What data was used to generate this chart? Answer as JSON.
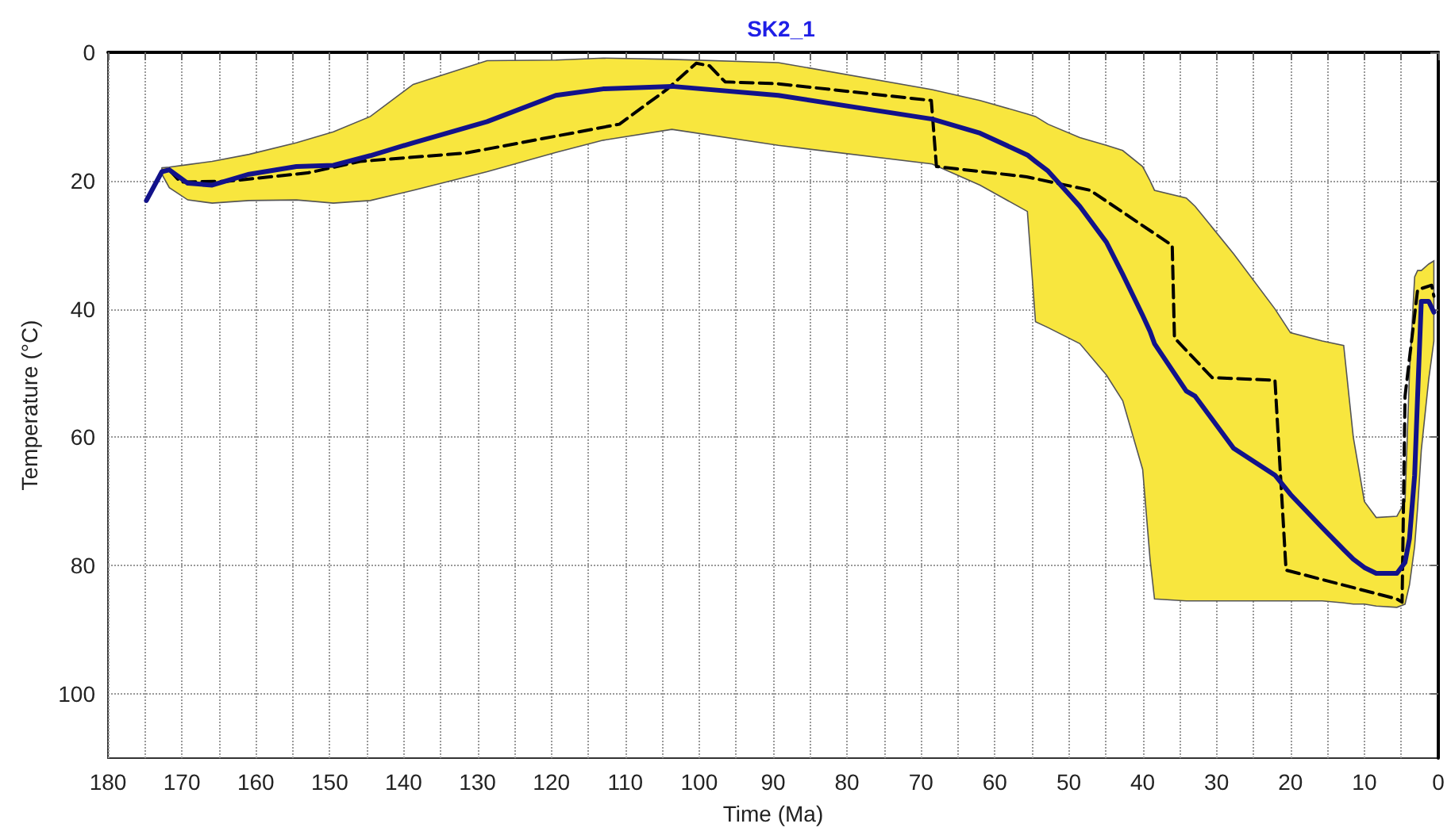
{
  "chart_data": {
    "type": "line",
    "title": "SK2_1",
    "xlabel": "Time (Ma)",
    "ylabel": "Temperature (°C)",
    "xlim": [
      180,
      0
    ],
    "ylim": [
      110,
      0
    ],
    "xticks": [
      180,
      {
        "value": 175,
        "label": null
      },
      170,
      {
        "value": 165,
        "label": null
      },
      160,
      {
        "value": 155,
        "label": null
      },
      150,
      {
        "value": 145,
        "label": null
      },
      140,
      {
        "value": 135,
        "label": null
      },
      130,
      {
        "value": 125,
        "label": null
      },
      120,
      {
        "value": 115,
        "label": null
      },
      110,
      {
        "value": 105,
        "label": null
      },
      100,
      {
        "value": 95,
        "label": null
      },
      90,
      {
        "value": 85,
        "label": null
      },
      80,
      {
        "value": 75,
        "label": null
      },
      70,
      {
        "value": 65,
        "label": null
      },
      60,
      {
        "value": 55,
        "label": null
      },
      50,
      {
        "value": 45,
        "label": null
      },
      40,
      {
        "value": 35,
        "label": null
      },
      30,
      {
        "value": 25,
        "label": null
      },
      20,
      {
        "value": 15,
        "label": null
      },
      10,
      {
        "value": 5,
        "label": null
      },
      0
    ],
    "yticks": [
      0,
      20,
      40,
      60,
      80,
      100
    ],
    "grid": true,
    "marker": "none",
    "series": [
      {
        "color": "#000000",
        "line_style": "dashed",
        "x": [
          171.7,
          170.2,
          163.8,
          153,
          145.9,
          131.6,
          110.8,
          104.4,
          100.4,
          98.6,
          96.5,
          89.3,
          68.6,
          67.9,
          55.7,
          47.1,
          36,
          35.7,
          30.6,
          22.1,
          20.6,
          5.6,
          4.9,
          4.5,
          2.8,
          0.9,
          0.6
        ],
        "values": [
          18.3,
          20.2,
          20.1,
          18.8,
          17,
          15.7,
          11.2,
          5.8,
          1.7,
          2.1,
          4.6,
          4.9,
          7.5,
          17.8,
          19.4,
          21.5,
          30.1,
          44.5,
          50.7,
          51.1,
          80.7,
          85.2,
          85.7,
          53.6,
          37,
          36.3,
          38
        ]
      },
      {
        "color": "#12128a",
        "line_style": "solid",
        "x": [
          174.8,
          172.7,
          171.7,
          169.2,
          165.9,
          160.9,
          154.5,
          149.5,
          144.5,
          138.7,
          128.7,
          119.4,
          113,
          103.7,
          89.3,
          68.5,
          62,
          55.6,
          54.5,
          52.8,
          48.5,
          44.9,
          42.7,
          40,
          39,
          38.4,
          34.1,
          32.9,
          27.7,
          22.1,
          20,
          15.7,
          12.8,
          11.5,
          10,
          8.4,
          5.6,
          4.5,
          3.9,
          3.2,
          2.8,
          2.3,
          1.3,
          0.6
        ],
        "values": [
          23.1,
          18.6,
          18.3,
          20.4,
          20.7,
          19,
          17.8,
          17.6,
          16.1,
          14.1,
          10.8,
          6.7,
          5.7,
          5.3,
          6.7,
          10.4,
          12.6,
          16,
          17,
          18.5,
          24,
          29.6,
          34.6,
          41,
          43.5,
          45.4,
          52.8,
          53.6,
          61.7,
          65.9,
          68.9,
          74.1,
          77.5,
          79,
          80.3,
          81.2,
          81.2,
          79.5,
          75.8,
          65.9,
          53.6,
          38.8,
          38.8,
          40.5
        ],
        "lower": [
          null,
          18,
          17.9,
          17.5,
          17,
          15.9,
          14.1,
          12.4,
          10,
          5,
          1.3,
          1.2,
          0.9,
          1.1,
          1.6,
          5.8,
          7.5,
          9.6,
          10,
          11.2,
          13.3,
          14.5,
          15.3,
          17.8,
          20,
          21.5,
          22.7,
          24,
          31.4,
          40,
          43.7,
          45,
          45.7,
          60,
          70,
          72.5,
          72.3,
          70,
          50,
          35,
          34,
          34,
          33,
          32.5
        ],
        "upper": [
          null,
          19,
          21.1,
          23,
          23.5,
          23.1,
          23,
          23.5,
          23.1,
          21.5,
          18.6,
          15.6,
          13.7,
          12,
          14.5,
          17.4,
          20.7,
          24.8,
          42,
          42.9,
          45.4,
          50.3,
          54.3,
          65,
          79,
          85.2,
          85.5,
          85.5,
          85.5,
          85.5,
          85.5,
          85.5,
          85.8,
          86,
          86,
          86.3,
          86.5,
          86,
          83,
          77,
          71,
          62,
          51,
          45
        ]
      }
    ]
  }
}
